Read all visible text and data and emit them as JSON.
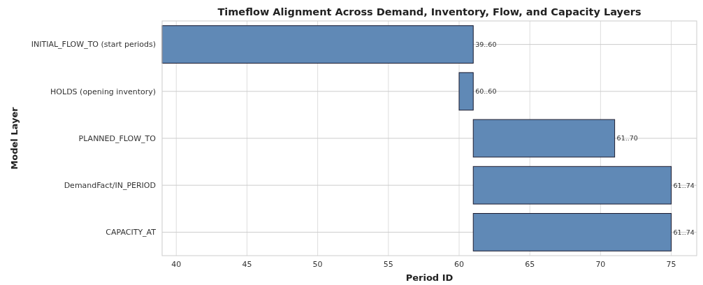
{
  "chart_data": {
    "type": "bar",
    "orientation": "horizontal",
    "title": "Timeflow Alignment Across Demand, Inventory, Flow, and Capacity Layers",
    "xlabel": "Period ID",
    "ylabel": "Model Layer",
    "categories": [
      "INITIAL_FLOW_TO (start periods)",
      "HOLDS (opening inventory)",
      "PLANNED_FLOW_TO",
      "DemandFact/IN_PERIOD",
      "CAPACITY_AT"
    ],
    "base": [
      39,
      60,
      61,
      61,
      61
    ],
    "values": [
      22,
      1,
      10,
      14,
      14
    ],
    "value_labels": [
      "39..60",
      "60..60",
      "61..70",
      "61..74",
      "61..74"
    ],
    "color": "#6089b6",
    "xlim": [
      39,
      76.8
    ],
    "xticks": [
      40,
      45,
      50,
      55,
      60,
      65,
      70,
      75
    ],
    "grid": true
  }
}
